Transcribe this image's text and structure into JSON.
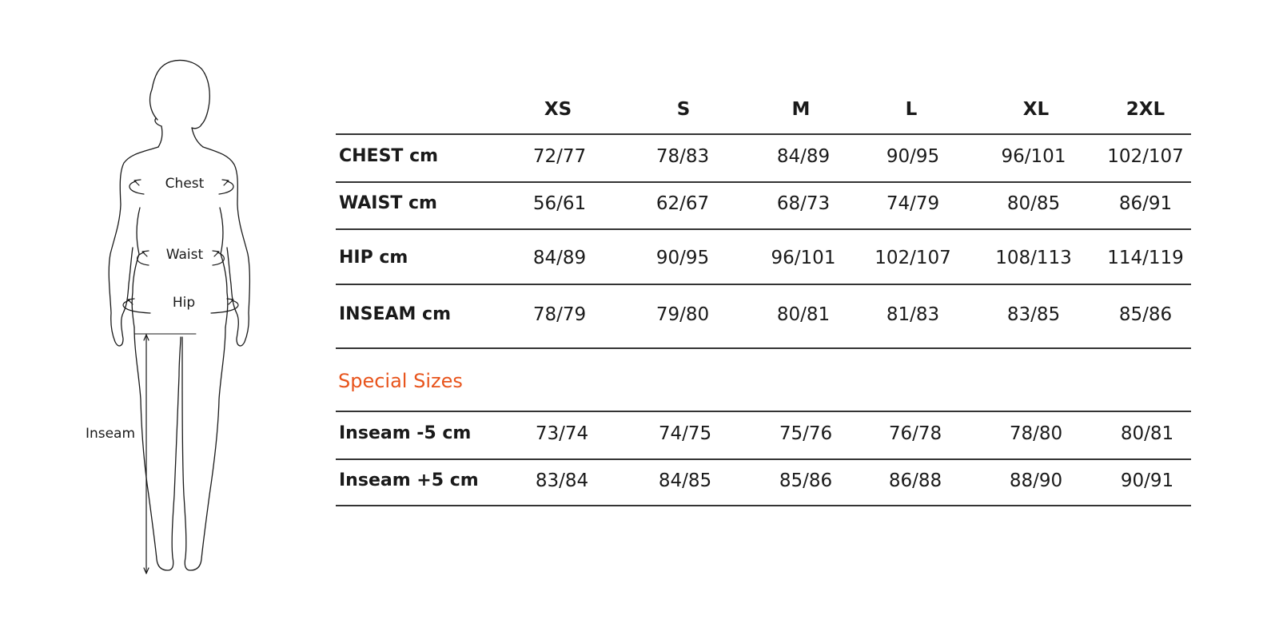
{
  "figure": {
    "labels": {
      "chest": "Chest",
      "waist": "Waist",
      "hip": "Hip",
      "inseam": "Inseam"
    }
  },
  "table": {
    "sizes": [
      "XS",
      "S",
      "M",
      "L",
      "XL",
      "2XL"
    ],
    "rows": [
      {
        "label": "CHEST  cm",
        "values": [
          "72/77",
          "78/83",
          "84/89",
          "90/95",
          "96/101",
          "102/107"
        ]
      },
      {
        "label": "WAIST cm",
        "values": [
          "56/61",
          "62/67",
          "68/73",
          "74/79",
          "80/85",
          "86/91"
        ]
      },
      {
        "label": "HIP cm",
        "values": [
          "84/89",
          "90/95",
          "96/101",
          "102/107",
          "108/113",
          "114/119"
        ]
      },
      {
        "label": "INSEAM cm",
        "values": [
          "78/79",
          "79/80",
          "80/81",
          "81/83",
          "83/85",
          "85/86"
        ]
      }
    ]
  },
  "special": {
    "title": "Special Sizes",
    "rows": [
      {
        "label": "Inseam -5 cm",
        "values": [
          "73/74",
          "74/75",
          "75/76",
          "76/78",
          "78/80",
          "80/81"
        ]
      },
      {
        "label": "Inseam +5 cm",
        "values": [
          "83/84",
          "84/85",
          "85/86",
          "86/88",
          "88/90",
          "90/91"
        ]
      }
    ]
  },
  "colors": {
    "accent": "#e8541c",
    "rule": "#333333",
    "text": "#1a1a1a"
  }
}
